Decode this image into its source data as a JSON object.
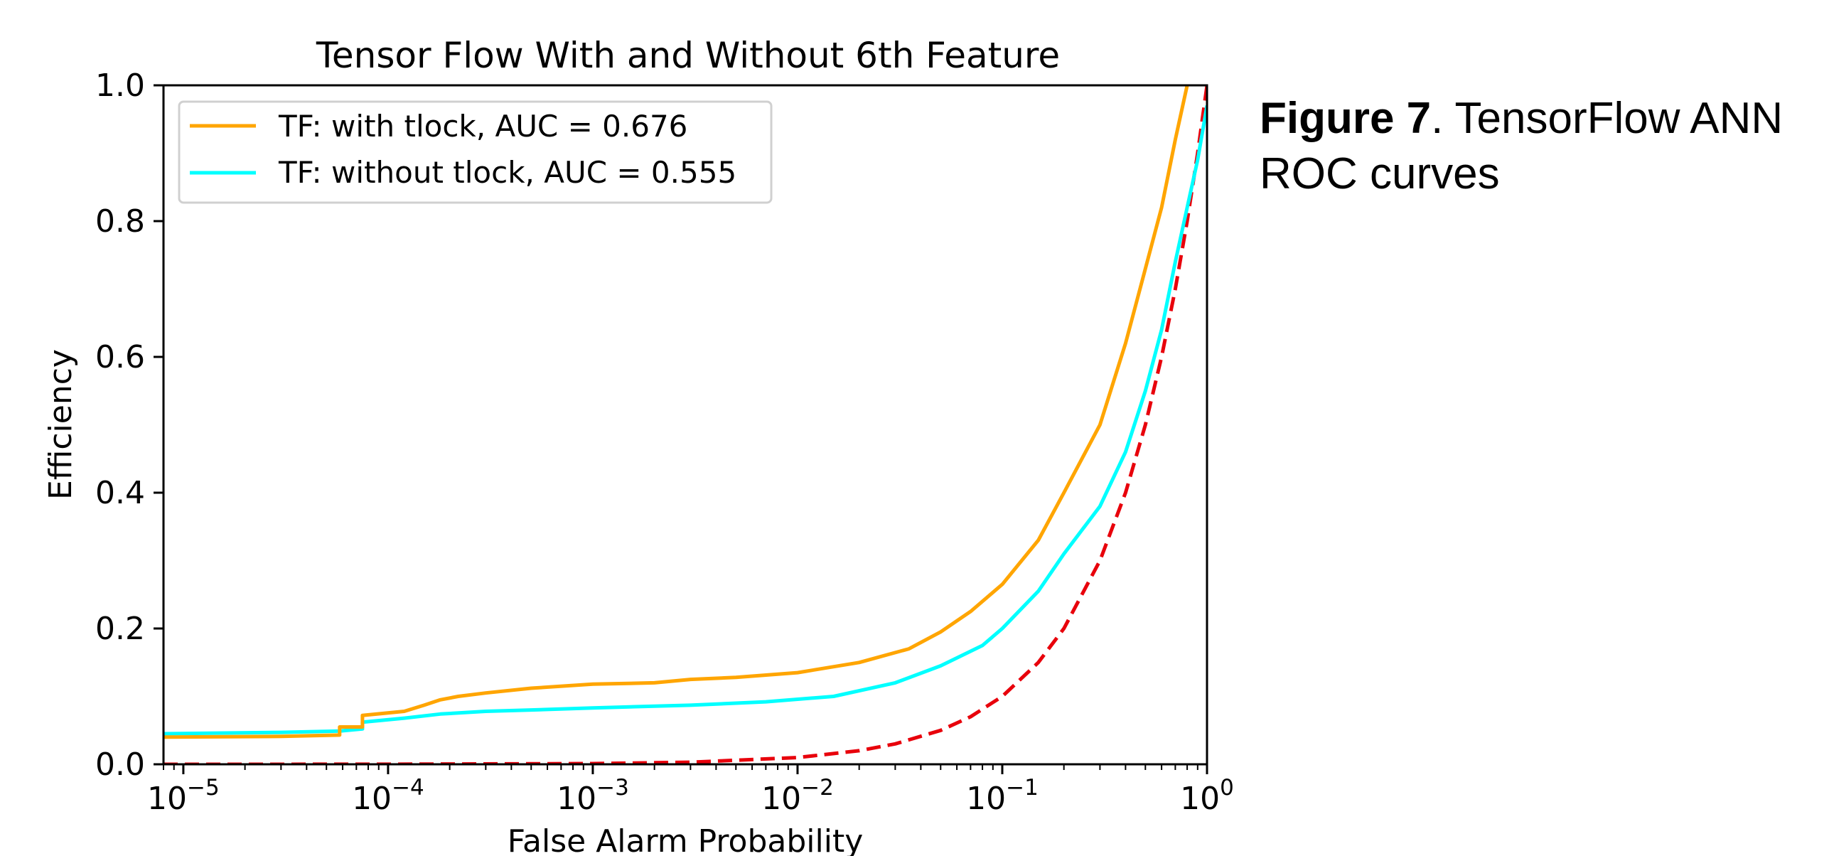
{
  "caption": {
    "figure_label": "Figure 7",
    "text": ". TensorFlow ANN ROC curves"
  },
  "chart_data": {
    "type": "line",
    "title": "Tensor Flow With and Without 6th Feature",
    "xlabel": "False Alarm Probability",
    "ylabel": "Efficiency",
    "xscale": "log",
    "xlim": [
      8e-06,
      1.0
    ],
    "ylim": [
      0.0,
      1.0
    ],
    "x_ticks": [
      {
        "value": 1e-05,
        "base": "10",
        "exp": "−5"
      },
      {
        "value": 0.0001,
        "base": "10",
        "exp": "−4"
      },
      {
        "value": 0.001,
        "base": "10",
        "exp": "−3"
      },
      {
        "value": 0.01,
        "base": "10",
        "exp": "−2"
      },
      {
        "value": 0.1,
        "base": "10",
        "exp": "−1"
      },
      {
        "value": 1.0,
        "base": "10",
        "exp": "0"
      }
    ],
    "y_ticks": [
      {
        "value": 0.0,
        "label": "0.0"
      },
      {
        "value": 0.2,
        "label": "0.2"
      },
      {
        "value": 0.4,
        "label": "0.4"
      },
      {
        "value": 0.6,
        "label": "0.6"
      },
      {
        "value": 0.8,
        "label": "0.8"
      },
      {
        "value": 1.0,
        "label": "1.0"
      }
    ],
    "grid": false,
    "legend_position": "upper-left",
    "series": [
      {
        "name": "TF: with tlock, AUC = 0.676",
        "color": "#FFA500",
        "style": "solid",
        "x": [
          8e-06,
          3e-05,
          5.8e-05,
          5.8e-05,
          7.5e-05,
          7.5e-05,
          0.00012,
          0.00015,
          0.00018,
          0.00022,
          0.0003,
          0.0005,
          0.001,
          0.002,
          0.003,
          0.005,
          0.01,
          0.02,
          0.035,
          0.05,
          0.07,
          0.1,
          0.15,
          0.2,
          0.3,
          0.4,
          0.5,
          0.6,
          0.7,
          0.8
        ],
        "y": [
          0.04,
          0.041,
          0.043,
          0.055,
          0.055,
          0.072,
          0.078,
          0.087,
          0.095,
          0.1,
          0.105,
          0.112,
          0.118,
          0.12,
          0.125,
          0.128,
          0.135,
          0.15,
          0.17,
          0.195,
          0.225,
          0.265,
          0.33,
          0.4,
          0.5,
          0.62,
          0.73,
          0.82,
          0.92,
          1.0
        ]
      },
      {
        "name": "TF: without tlock, AUC = 0.555",
        "color": "#00FFFF",
        "style": "solid",
        "x": [
          8e-06,
          3e-05,
          5.8e-05,
          7.5e-05,
          7.5e-05,
          0.00012,
          0.00018,
          0.0003,
          0.0005,
          0.001,
          0.003,
          0.007,
          0.015,
          0.03,
          0.05,
          0.08,
          0.1,
          0.15,
          0.2,
          0.3,
          0.4,
          0.5,
          0.6,
          0.7,
          0.8,
          0.9,
          1.0
        ],
        "y": [
          0.045,
          0.047,
          0.049,
          0.052,
          0.062,
          0.068,
          0.074,
          0.078,
          0.08,
          0.083,
          0.087,
          0.092,
          0.1,
          0.12,
          0.145,
          0.175,
          0.2,
          0.255,
          0.31,
          0.38,
          0.46,
          0.55,
          0.64,
          0.74,
          0.82,
          0.89,
          0.97
        ]
      },
      {
        "name": "",
        "color": "#E8000B",
        "style": "dashed",
        "x": [
          8e-06,
          0.0001,
          0.001,
          0.003,
          0.01,
          0.02,
          0.03,
          0.05,
          0.07,
          0.1,
          0.15,
          0.2,
          0.3,
          0.4,
          0.5,
          0.6,
          0.7,
          0.8,
          0.9,
          1.0
        ],
        "y": [
          8e-06,
          0.0001,
          0.001,
          0.003,
          0.01,
          0.02,
          0.03,
          0.05,
          0.07,
          0.1,
          0.15,
          0.2,
          0.3,
          0.4,
          0.5,
          0.6,
          0.7,
          0.8,
          0.9,
          1.0
        ]
      }
    ]
  }
}
